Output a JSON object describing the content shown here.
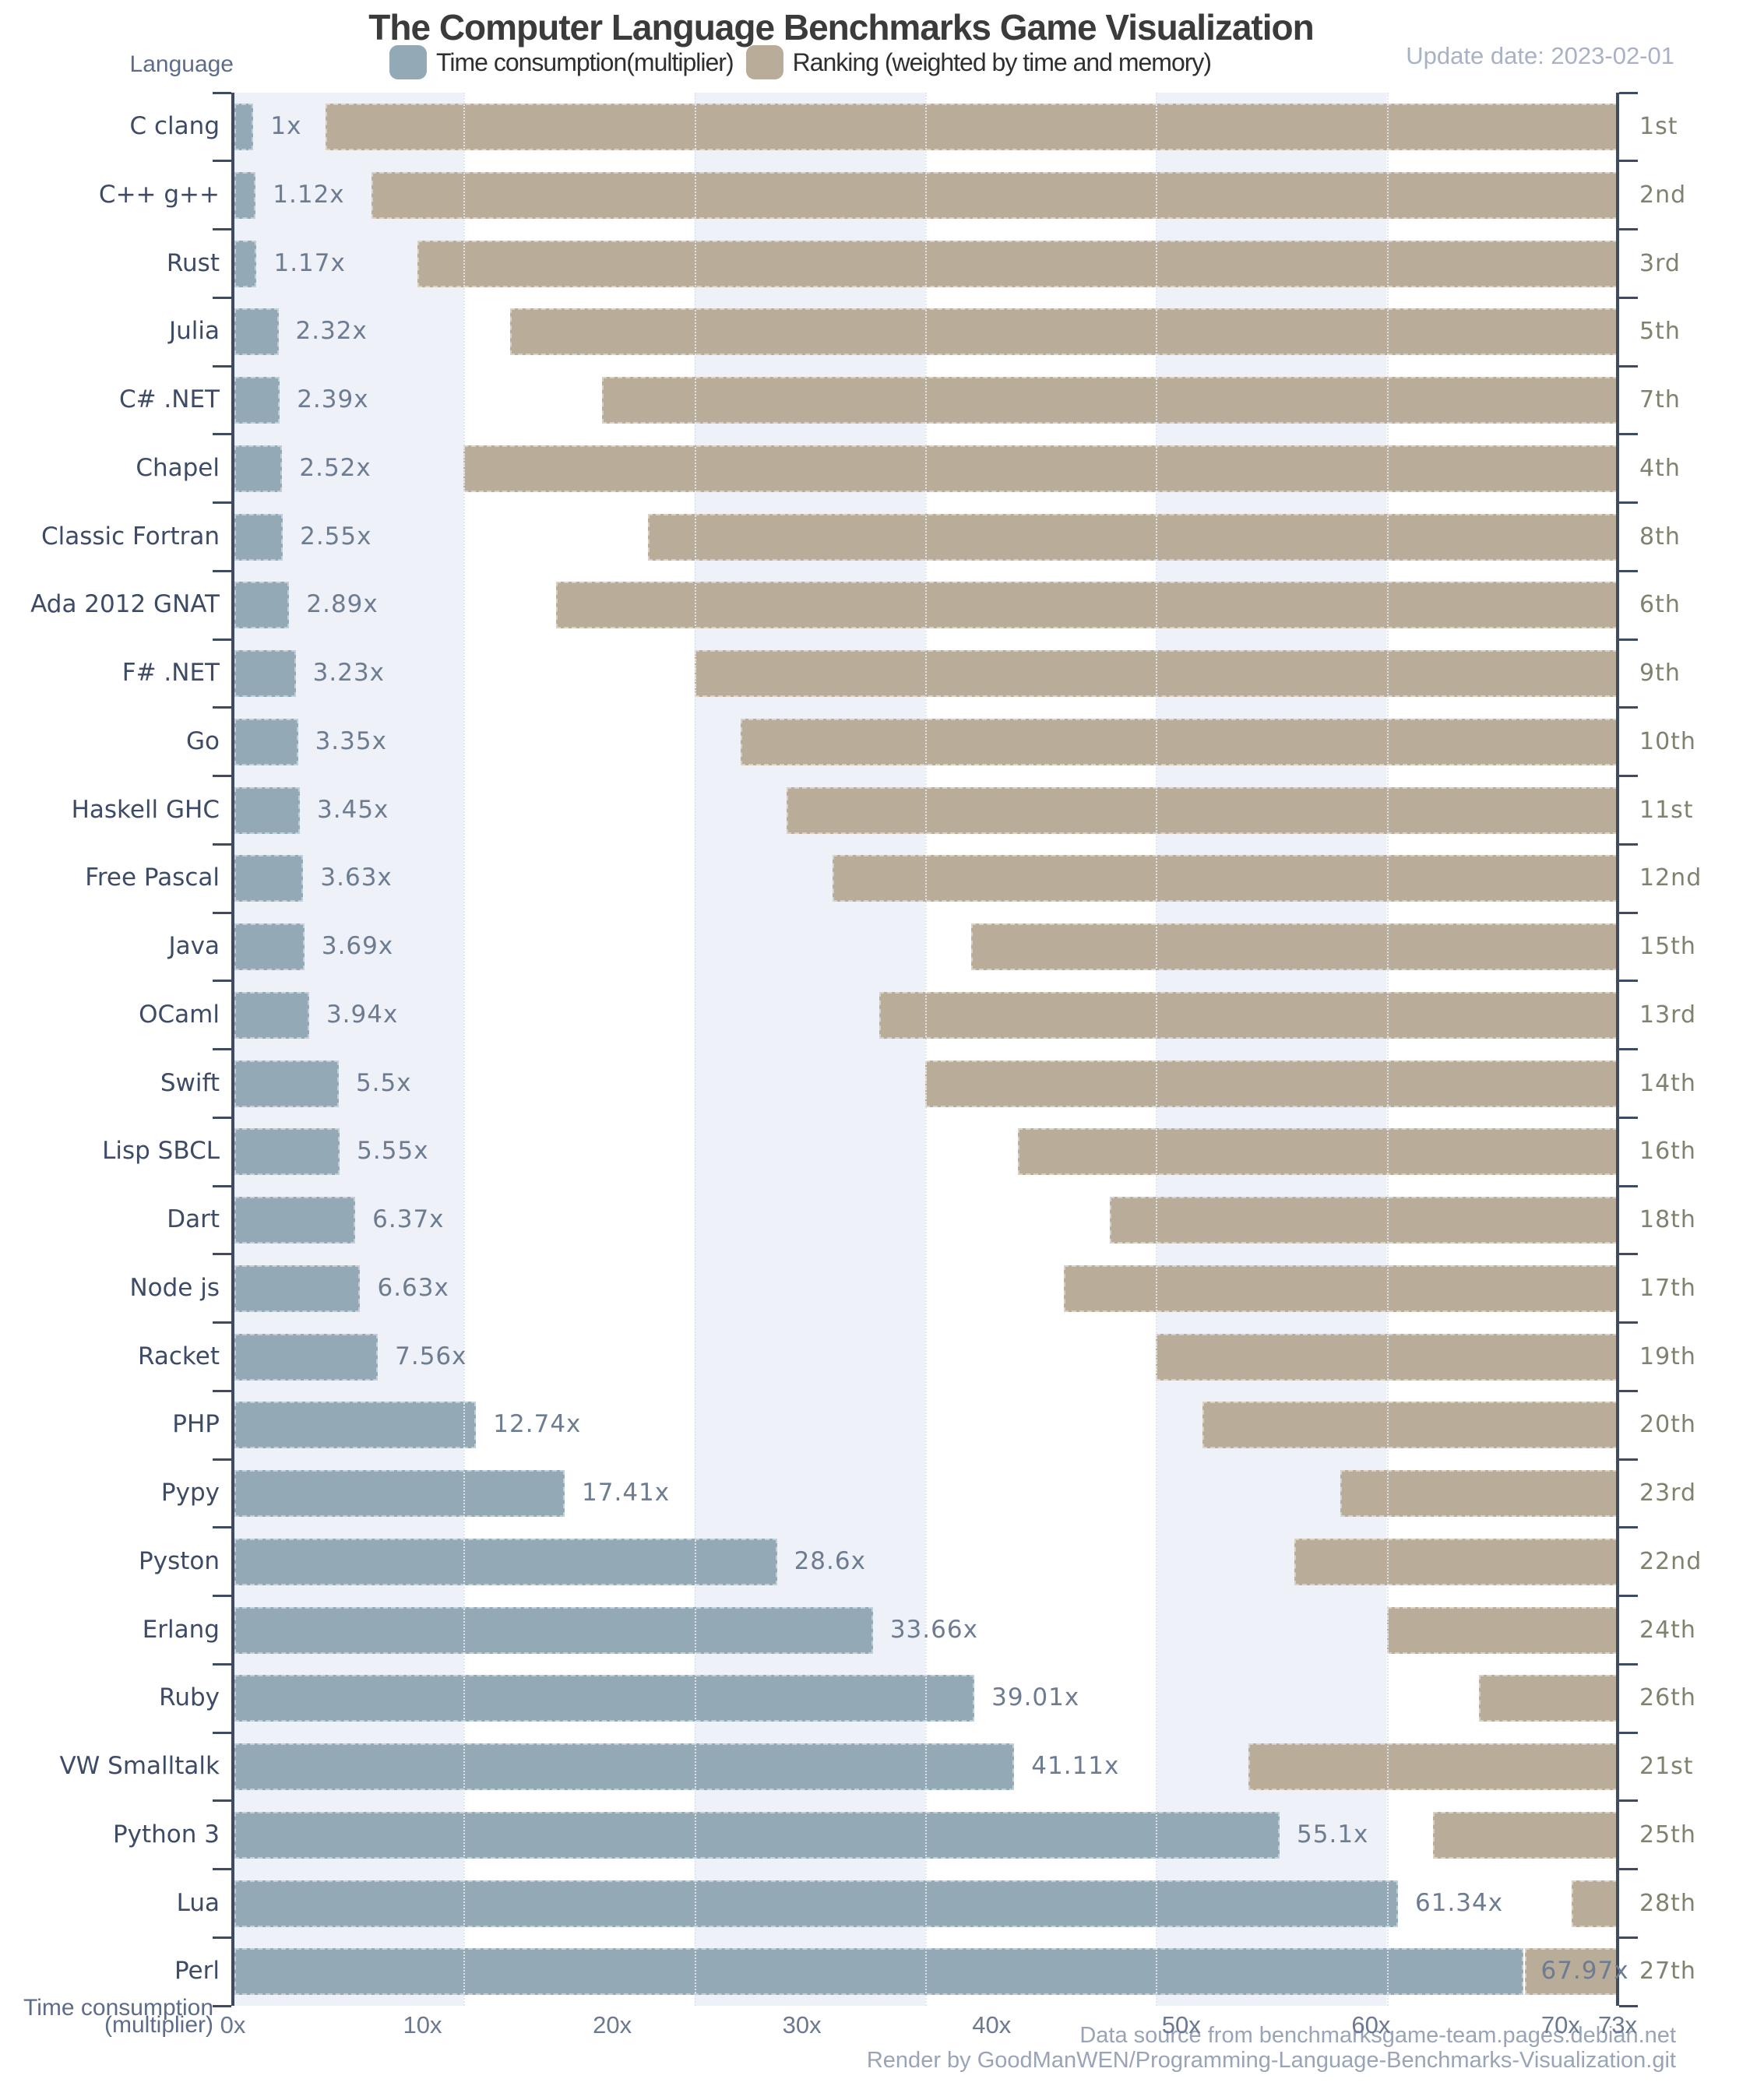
{
  "title": "The Computer Language Benchmarks Game Visualization",
  "header": {
    "y_axis_label": "Language",
    "update_date": "Update date: 2023-02-01"
  },
  "legend": [
    {
      "label": "Time consumption(multiplier)",
      "color": "#93a9b6"
    },
    {
      "label": "Ranking (weighted by time and memory)",
      "color": "#b9ac99"
    }
  ],
  "x_axis_title": {
    "line1": "Time consumption",
    "line2": "(multiplier)"
  },
  "footer": {
    "line1": "Data source from benchmarksgame-team.pages.debian.net",
    "line2": "Render by GoodManWEN/Programming-Language-Benchmarks-Visualization.git"
  },
  "colors": {
    "time_bar": "#93a9b6",
    "rank_bar": "#b9ac99",
    "stripe_light": "#eef2f8",
    "stripe_white": "#ffffff",
    "axis": "#3f4a63",
    "language_label": "#3e4b66",
    "value_label": "#6e7c92",
    "rank_label": "#80826f",
    "tick_label": "#6b7890"
  },
  "chart_data": {
    "type": "bar",
    "orientation": "horizontal",
    "title": "The Computer Language Benchmarks Game Visualization",
    "xlabel": "Time consumption (multiplier)",
    "ylabel": "Language",
    "x_axis": {
      "max": 73,
      "tick_values": [
        0,
        10,
        20,
        30,
        40,
        50,
        60,
        70,
        73
      ],
      "tick_labels": [
        "0x",
        "10x",
        "20x",
        "30x",
        "40x",
        "50x",
        "60x",
        "70x",
        "73x"
      ]
    },
    "rank_axis": {
      "max": 30,
      "stripe_interval": 5,
      "grid_values": [
        5,
        10,
        15,
        20,
        25
      ]
    },
    "legend_position": "top",
    "series_names": [
      "Time consumption(multiplier)",
      "Ranking (weighted by time and memory)"
    ],
    "rows": [
      {
        "language": "C clang",
        "time_multiplier": 1.0,
        "time_label": "1x",
        "rank": 1,
        "rank_label": "1st"
      },
      {
        "language": "C++ g++",
        "time_multiplier": 1.12,
        "time_label": "1.12x",
        "rank": 2,
        "rank_label": "2nd"
      },
      {
        "language": "Rust",
        "time_multiplier": 1.17,
        "time_label": "1.17x",
        "rank": 3,
        "rank_label": "3rd"
      },
      {
        "language": "Julia",
        "time_multiplier": 2.32,
        "time_label": "2.32x",
        "rank": 5,
        "rank_label": "5th"
      },
      {
        "language": "C# .NET",
        "time_multiplier": 2.39,
        "time_label": "2.39x",
        "rank": 7,
        "rank_label": "7th"
      },
      {
        "language": "Chapel",
        "time_multiplier": 2.52,
        "time_label": "2.52x",
        "rank": 4,
        "rank_label": "4th"
      },
      {
        "language": "Classic Fortran",
        "time_multiplier": 2.55,
        "time_label": "2.55x",
        "rank": 8,
        "rank_label": "8th"
      },
      {
        "language": "Ada 2012 GNAT",
        "time_multiplier": 2.89,
        "time_label": "2.89x",
        "rank": 6,
        "rank_label": "6th"
      },
      {
        "language": "F# .NET",
        "time_multiplier": 3.23,
        "time_label": "3.23x",
        "rank": 9,
        "rank_label": "9th"
      },
      {
        "language": "Go",
        "time_multiplier": 3.35,
        "time_label": "3.35x",
        "rank": 10,
        "rank_label": "10th"
      },
      {
        "language": "Haskell GHC",
        "time_multiplier": 3.45,
        "time_label": "3.45x",
        "rank": 11,
        "rank_label": "11st"
      },
      {
        "language": "Free Pascal",
        "time_multiplier": 3.63,
        "time_label": "3.63x",
        "rank": 12,
        "rank_label": "12nd"
      },
      {
        "language": "Java",
        "time_multiplier": 3.69,
        "time_label": "3.69x",
        "rank": 15,
        "rank_label": "15th"
      },
      {
        "language": "OCaml",
        "time_multiplier": 3.94,
        "time_label": "3.94x",
        "rank": 13,
        "rank_label": "13rd"
      },
      {
        "language": "Swift",
        "time_multiplier": 5.5,
        "time_label": "5.5x",
        "rank": 14,
        "rank_label": "14th"
      },
      {
        "language": "Lisp SBCL",
        "time_multiplier": 5.55,
        "time_label": "5.55x",
        "rank": 16,
        "rank_label": "16th"
      },
      {
        "language": "Dart",
        "time_multiplier": 6.37,
        "time_label": "6.37x",
        "rank": 18,
        "rank_label": "18th"
      },
      {
        "language": "Node js",
        "time_multiplier": 6.63,
        "time_label": "6.63x",
        "rank": 17,
        "rank_label": "17th"
      },
      {
        "language": "Racket",
        "time_multiplier": 7.56,
        "time_label": "7.56x",
        "rank": 19,
        "rank_label": "19th"
      },
      {
        "language": "PHP",
        "time_multiplier": 12.74,
        "time_label": "12.74x",
        "rank": 20,
        "rank_label": "20th"
      },
      {
        "language": "Pypy",
        "time_multiplier": 17.41,
        "time_label": "17.41x",
        "rank": 23,
        "rank_label": "23rd"
      },
      {
        "language": "Pyston",
        "time_multiplier": 28.6,
        "time_label": "28.6x",
        "rank": 22,
        "rank_label": "22nd"
      },
      {
        "language": "Erlang",
        "time_multiplier": 33.66,
        "time_label": "33.66x",
        "rank": 24,
        "rank_label": "24th"
      },
      {
        "language": "Ruby",
        "time_multiplier": 39.01,
        "time_label": "39.01x",
        "rank": 26,
        "rank_label": "26th"
      },
      {
        "language": "VW Smalltalk",
        "time_multiplier": 41.11,
        "time_label": "41.11x",
        "rank": 21,
        "rank_label": "21st"
      },
      {
        "language": "Python 3",
        "time_multiplier": 55.1,
        "time_label": "55.1x",
        "rank": 25,
        "rank_label": "25th"
      },
      {
        "language": "Lua",
        "time_multiplier": 61.34,
        "time_label": "61.34x",
        "rank": 28,
        "rank_label": "28th"
      },
      {
        "language": "Perl",
        "time_multiplier": 67.97,
        "time_label": "67.97x",
        "rank": 27,
        "rank_label": "27th"
      }
    ]
  }
}
